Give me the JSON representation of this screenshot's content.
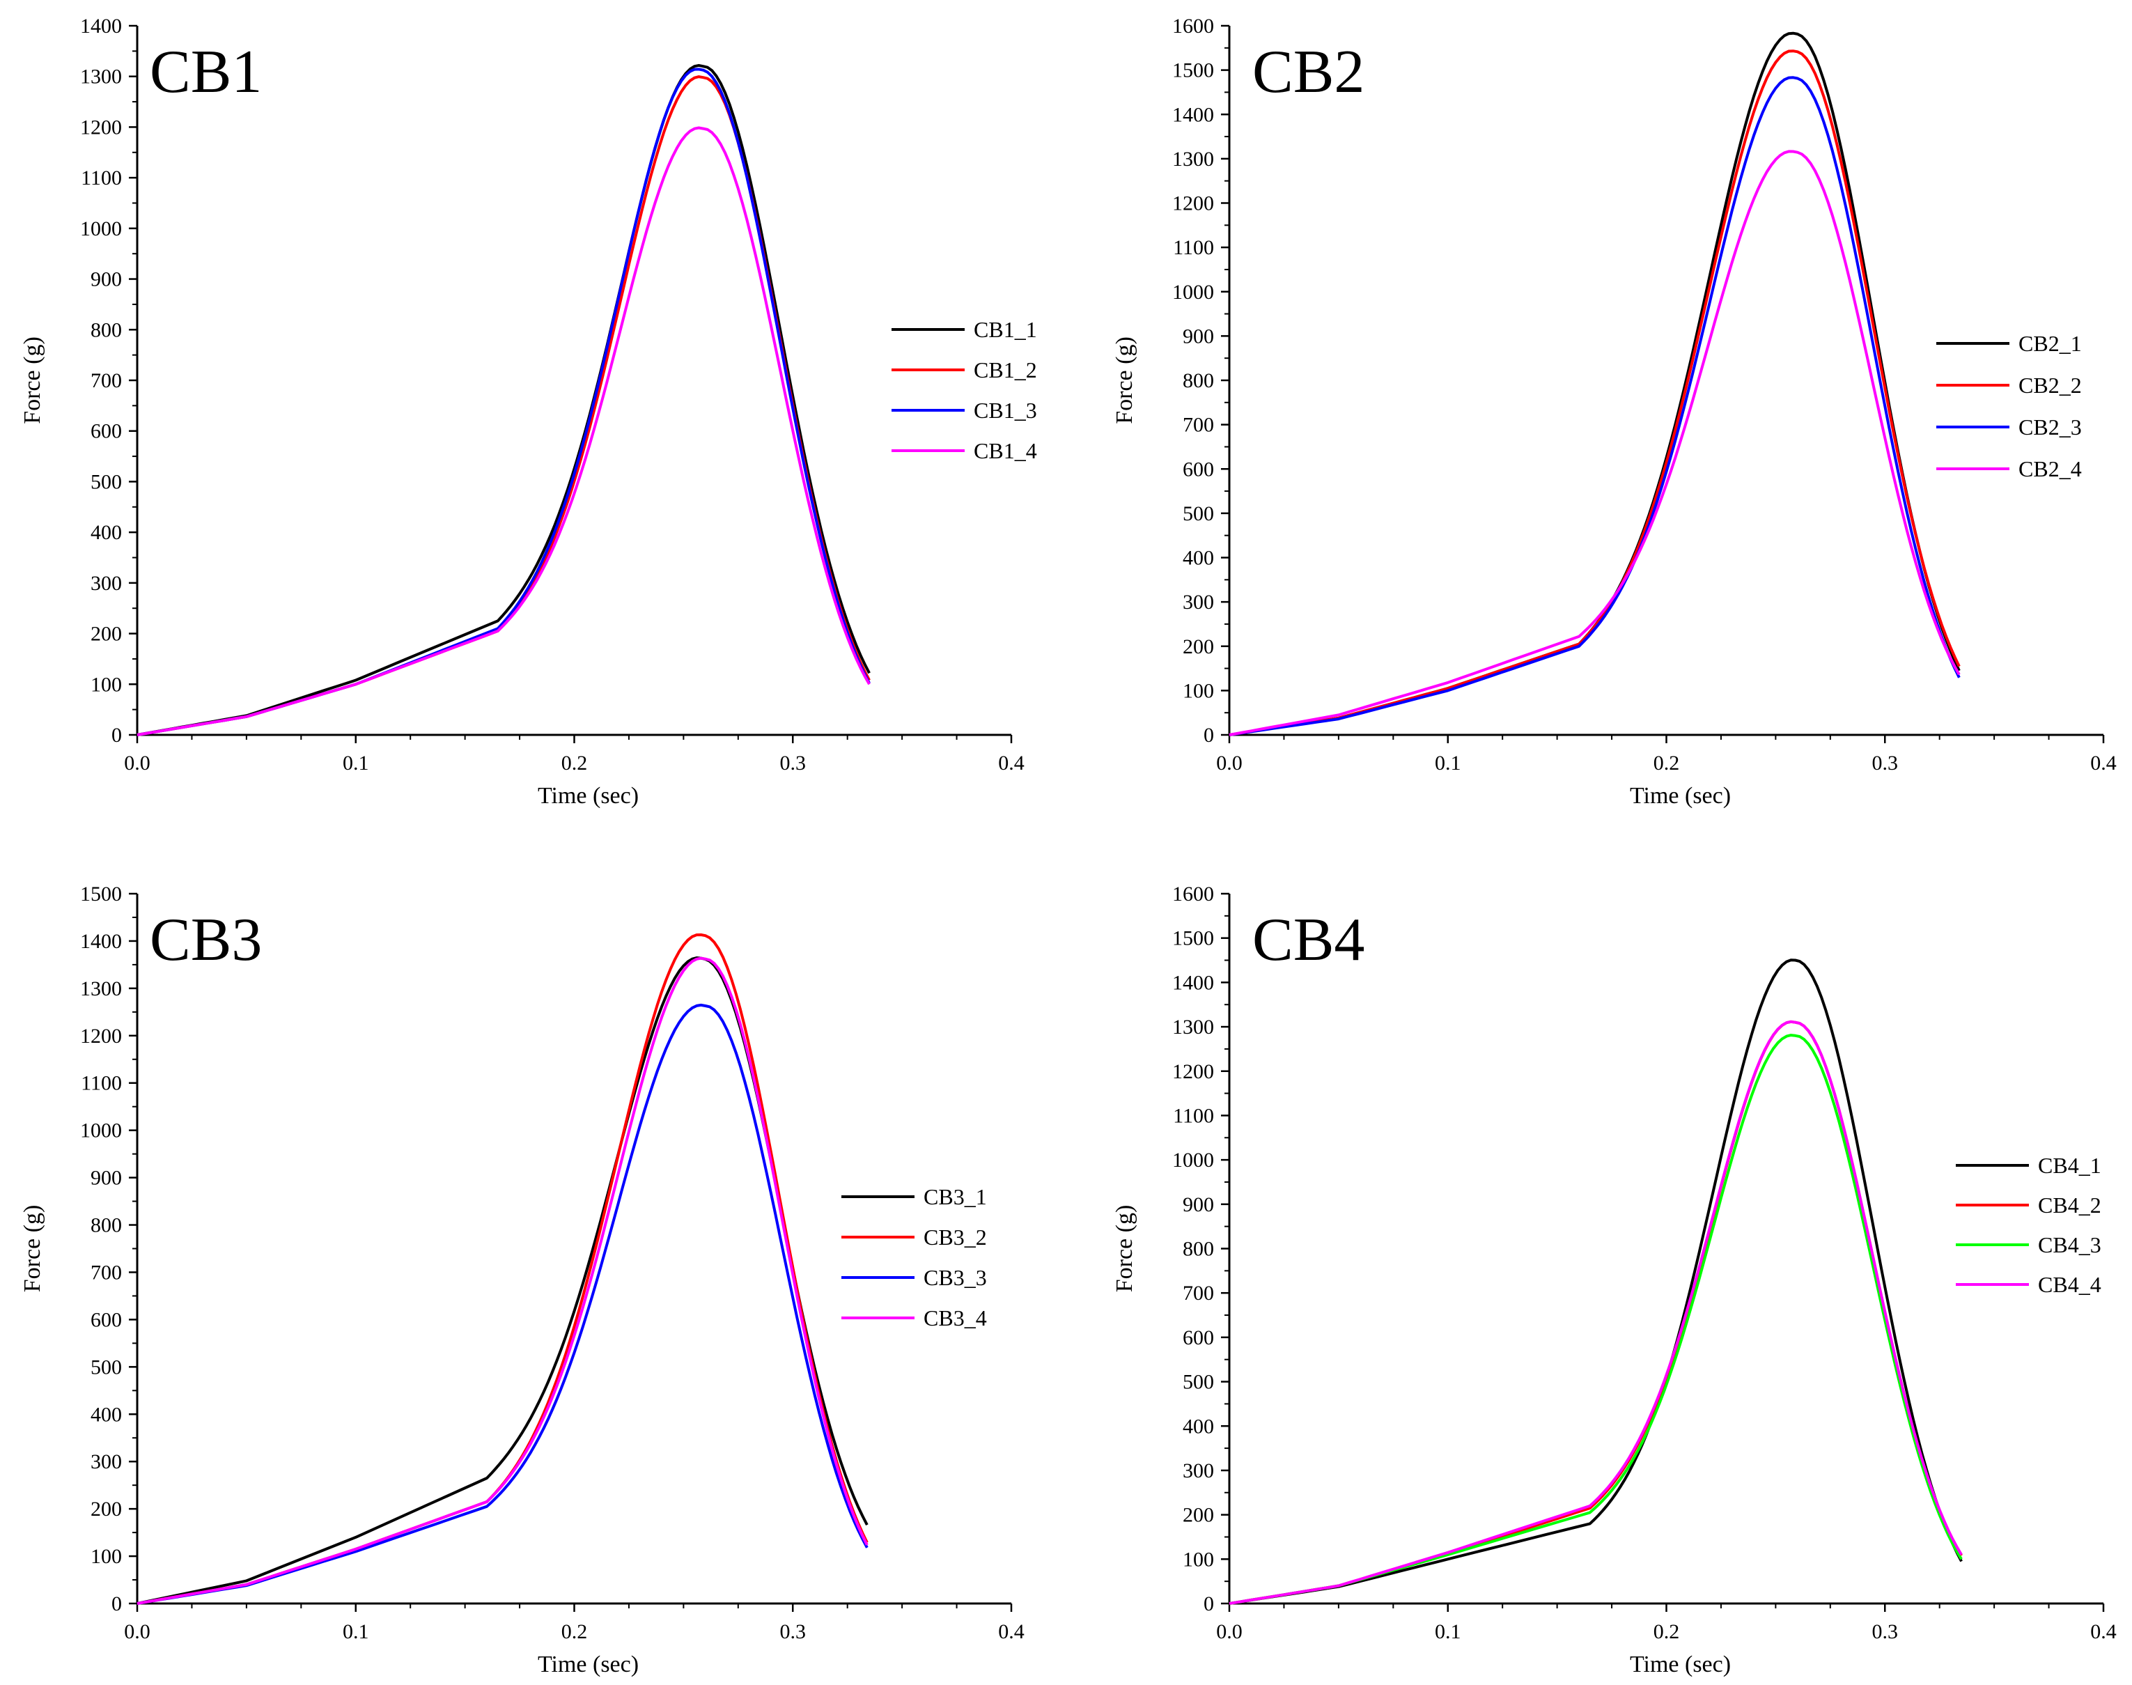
{
  "figure": {
    "chart_data": [
      {
        "type": "line",
        "title": "CB1",
        "xlabel": "Time (sec)",
        "ylabel": "Force (g)",
        "xlim": [
          0.0,
          0.4
        ],
        "ylim": [
          0,
          1400
        ],
        "x_ticks": [
          0.0,
          0.1,
          0.2,
          0.3,
          0.4
        ],
        "x_tick_labels": [
          "0.0",
          "0.1",
          "0.2",
          "0.3",
          "0.4"
        ],
        "y_ticks": [
          0,
          100,
          200,
          300,
          400,
          500,
          600,
          700,
          800,
          900,
          1000,
          1100,
          1200,
          1300,
          1400
        ],
        "y_tick_labels": [
          "0",
          "100",
          "200",
          "300",
          "400",
          "500",
          "600",
          "700",
          "800",
          "900",
          "1000",
          "1100",
          "1200",
          "1300",
          "1400"
        ],
        "legend_position": "right-middle",
        "series": [
          {
            "name": "CB1_1",
            "color": "#000000",
            "pre": [
              [
                0.0,
                0
              ],
              [
                0.05,
                38
              ],
              [
                0.1,
                108
              ],
              [
                0.165,
                225
              ]
            ],
            "rise_start": [
              0.165,
              225
            ],
            "peak": [
              0.259,
              1320
            ],
            "end": [
              0.335,
              122
            ]
          },
          {
            "name": "CB1_2",
            "color": "#ff0000",
            "pre": [
              [
                0.0,
                0
              ],
              [
                0.05,
                36
              ],
              [
                0.1,
                100
              ],
              [
                0.165,
                205
              ]
            ],
            "rise_start": [
              0.165,
              205
            ],
            "peak": [
              0.259,
              1298
            ],
            "end": [
              0.335,
              108
            ]
          },
          {
            "name": "CB1_3",
            "color": "#0000ff",
            "pre": [
              [
                0.0,
                0
              ],
              [
                0.05,
                36
              ],
              [
                0.1,
                100
              ],
              [
                0.165,
                210
              ]
            ],
            "rise_start": [
              0.165,
              210
            ],
            "peak": [
              0.258,
              1313
            ],
            "end": [
              0.335,
              102
            ]
          },
          {
            "name": "CB1_4",
            "color": "#ff00ff",
            "pre": [
              [
                0.0,
                0
              ],
              [
                0.05,
                36
              ],
              [
                0.1,
                100
              ],
              [
                0.165,
                205
              ]
            ],
            "rise_start": [
              0.165,
              205
            ],
            "peak": [
              0.259,
              1197
            ],
            "end": [
              0.335,
              100
            ]
          }
        ]
      },
      {
        "type": "line",
        "title": "CB2",
        "xlabel": "Time (sec)",
        "ylabel": "Force (g)",
        "xlim": [
          0.0,
          0.4
        ],
        "ylim": [
          0,
          1600
        ],
        "x_ticks": [
          0.0,
          0.1,
          0.2,
          0.3,
          0.4
        ],
        "x_tick_labels": [
          "0.0",
          "0.1",
          "0.2",
          "0.3",
          "0.4"
        ],
        "y_ticks": [
          0,
          100,
          200,
          300,
          400,
          500,
          600,
          700,
          800,
          900,
          1000,
          1100,
          1200,
          1300,
          1400,
          1500,
          1600
        ],
        "y_tick_labels": [
          "0",
          "100",
          "200",
          "300",
          "400",
          "500",
          "600",
          "700",
          "800",
          "900",
          "1000",
          "1100",
          "1200",
          "1300",
          "1400",
          "1500",
          "1600"
        ],
        "legend_position": "right-middle",
        "series": [
          {
            "name": "CB2_1",
            "color": "#000000",
            "pre": [
              [
                0.0,
                0
              ],
              [
                0.05,
                38
              ],
              [
                0.1,
                105
              ],
              [
                0.16,
                205
              ]
            ],
            "rise_start": [
              0.16,
              205
            ],
            "peak": [
              0.259,
              1582
            ],
            "end": [
              0.335,
              135
            ]
          },
          {
            "name": "CB2_2",
            "color": "#ff0000",
            "pre": [
              [
                0.0,
                0
              ],
              [
                0.05,
                38
              ],
              [
                0.1,
                105
              ],
              [
                0.16,
                205
              ]
            ],
            "rise_start": [
              0.16,
              205
            ],
            "peak": [
              0.259,
              1542
            ],
            "end": [
              0.335,
              145
            ]
          },
          {
            "name": "CB2_3",
            "color": "#0000ff",
            "pre": [
              [
                0.0,
                0
              ],
              [
                0.05,
                36
              ],
              [
                0.1,
                100
              ],
              [
                0.16,
                200
              ]
            ],
            "rise_start": [
              0.16,
              200
            ],
            "peak": [
              0.259,
              1482
            ],
            "end": [
              0.335,
              120
            ]
          },
          {
            "name": "CB2_4",
            "color": "#ff00ff",
            "pre": [
              [
                0.0,
                0
              ],
              [
                0.05,
                45
              ],
              [
                0.1,
                118
              ],
              [
                0.16,
                222
              ]
            ],
            "rise_start": [
              0.16,
              222
            ],
            "peak": [
              0.259,
              1315
            ],
            "end": [
              0.335,
              128
            ]
          }
        ]
      },
      {
        "type": "line",
        "title": "CB3",
        "xlabel": "Time (sec)",
        "ylabel": "Force (g)",
        "xlim": [
          0.0,
          0.4
        ],
        "ylim": [
          0,
          1500
        ],
        "x_ticks": [
          0.0,
          0.1,
          0.2,
          0.3,
          0.4
        ],
        "x_tick_labels": [
          "0.0",
          "0.1",
          "0.2",
          "0.3",
          "0.4"
        ],
        "y_ticks": [
          0,
          100,
          200,
          300,
          400,
          500,
          600,
          700,
          800,
          900,
          1000,
          1100,
          1200,
          1300,
          1400,
          1500
        ],
        "y_tick_labels": [
          "0",
          "100",
          "200",
          "300",
          "400",
          "500",
          "600",
          "700",
          "800",
          "900",
          "1000",
          "1100",
          "1200",
          "1300",
          "1400",
          "1500"
        ],
        "legend_position": "right-middle",
        "series": [
          {
            "name": "CB3_1",
            "color": "#000000",
            "pre": [
              [
                0.0,
                0
              ],
              [
                0.05,
                48
              ],
              [
                0.1,
                140
              ],
              [
                0.16,
                265
              ]
            ],
            "rise_start": [
              0.16,
              265
            ],
            "peak": [
              0.259,
              1362
            ],
            "end": [
              0.335,
              158
            ]
          },
          {
            "name": "CB3_2",
            "color": "#ff0000",
            "pre": [
              [
                0.0,
                0
              ],
              [
                0.05,
                40
              ],
              [
                0.1,
                115
              ],
              [
                0.16,
                215
              ]
            ],
            "rise_start": [
              0.16,
              215
            ],
            "peak": [
              0.259,
              1412
            ],
            "end": [
              0.335,
              120
            ]
          },
          {
            "name": "CB3_3",
            "color": "#0000ff",
            "pre": [
              [
                0.0,
                0
              ],
              [
                0.05,
                38
              ],
              [
                0.1,
                110
              ],
              [
                0.16,
                205
              ]
            ],
            "rise_start": [
              0.16,
              205
            ],
            "peak": [
              0.26,
              1263
            ],
            "end": [
              0.335,
              110
            ]
          },
          {
            "name": "CB3_4",
            "color": "#ff00ff",
            "pre": [
              [
                0.0,
                0
              ],
              [
                0.05,
                40
              ],
              [
                0.1,
                115
              ],
              [
                0.16,
                215
              ]
            ],
            "rise_start": [
              0.16,
              215
            ],
            "peak": [
              0.26,
              1362
            ],
            "end": [
              0.335,
              115
            ]
          }
        ]
      },
      {
        "type": "line",
        "title": "CB4",
        "xlabel": "Time (sec)",
        "ylabel": "Force (g)",
        "xlim": [
          0.0,
          0.4
        ],
        "ylim": [
          0,
          1600
        ],
        "x_ticks": [
          0.0,
          0.1,
          0.2,
          0.3,
          0.4
        ],
        "x_tick_labels": [
          "0.0",
          "0.1",
          "0.2",
          "0.3",
          "0.4"
        ],
        "y_ticks": [
          0,
          100,
          200,
          300,
          400,
          500,
          600,
          700,
          800,
          900,
          1000,
          1100,
          1200,
          1300,
          1400,
          1500,
          1600
        ],
        "y_tick_labels": [
          "0",
          "100",
          "200",
          "300",
          "400",
          "500",
          "600",
          "700",
          "800",
          "900",
          "1000",
          "1100",
          "1200",
          "1300",
          "1400",
          "1500",
          "1600"
        ],
        "legend_position": "right-middle",
        "series": [
          {
            "name": "CB4_1",
            "color": "#000000",
            "pre": [
              [
                0.0,
                0
              ],
              [
                0.05,
                38
              ],
              [
                0.1,
                100
              ],
              [
                0.165,
                180
              ]
            ],
            "rise_start": [
              0.165,
              180
            ],
            "peak": [
              0.259,
              1450
            ],
            "end": [
              0.335,
              95
            ]
          },
          {
            "name": "CB4_2",
            "color": "#ff0000",
            "pre": [
              [
                0.0,
                0
              ],
              [
                0.05,
                40
              ],
              [
                0.1,
                112
              ],
              [
                0.165,
                215
              ]
            ],
            "rise_start": [
              0.165,
              215
            ],
            "peak": [
              0.259,
              1310
            ],
            "end": [
              0.335,
              108
            ]
          },
          {
            "name": "CB4_3",
            "color": "#00ff00",
            "pre": [
              [
                0.0,
                0
              ],
              [
                0.05,
                40
              ],
              [
                0.1,
                110
              ],
              [
                0.165,
                205
              ]
            ],
            "rise_start": [
              0.165,
              205
            ],
            "peak": [
              0.259,
              1280
            ],
            "end": [
              0.335,
              100
            ]
          },
          {
            "name": "CB4_4",
            "color": "#ff00ff",
            "pre": [
              [
                0.0,
                0
              ],
              [
                0.05,
                40
              ],
              [
                0.1,
                115
              ],
              [
                0.165,
                220
              ]
            ],
            "rise_start": [
              0.165,
              220
            ],
            "peak": [
              0.259,
              1310
            ],
            "end": [
              0.335,
              110
            ]
          }
        ]
      }
    ]
  }
}
